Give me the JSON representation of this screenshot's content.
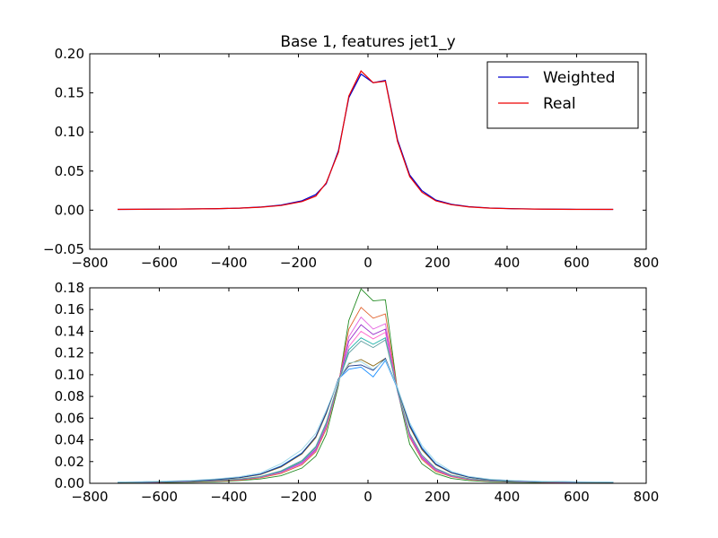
{
  "chart_data": [
    {
      "type": "line",
      "title": "Base 1, features jet1_y",
      "xlabel": "",
      "ylabel": "",
      "xlim": [
        -800,
        800
      ],
      "ylim": [
        -0.05,
        0.2
      ],
      "xticks": [
        -800,
        -600,
        -400,
        -200,
        0,
        200,
        400,
        600,
        800
      ],
      "xtick_labels": [
        "−800",
        "−600",
        "−400",
        "−200",
        "0",
        "200",
        "400",
        "600",
        "800"
      ],
      "yticks": [
        -0.05,
        0.0,
        0.05,
        0.1,
        0.15,
        0.2
      ],
      "ytick_labels": [
        "−0.05",
        "0.00",
        "0.05",
        "0.10",
        "0.15",
        "0.20"
      ],
      "grid": false,
      "legend": "top-right",
      "x": [
        -720,
        -650,
        -580,
        -510,
        -440,
        -370,
        -310,
        -250,
        -190,
        -150,
        -120,
        -85,
        -55,
        -20,
        15,
        50,
        85,
        120,
        155,
        195,
        240,
        290,
        350,
        420,
        500,
        600,
        705
      ],
      "series": [
        {
          "name": "Weighted",
          "color": "#0000cc",
          "values": [
            0.001,
            0.0012,
            0.0014,
            0.0016,
            0.0019,
            0.0026,
            0.004,
            0.0065,
            0.012,
            0.02,
            0.034,
            0.076,
            0.144,
            0.174,
            0.163,
            0.166,
            0.09,
            0.045,
            0.025,
            0.013,
            0.0075,
            0.0045,
            0.0028,
            0.0019,
            0.0014,
            0.0011,
            0.001
          ]
        },
        {
          "name": "Real",
          "color": "#ee0000",
          "values": [
            0.001,
            0.0012,
            0.0014,
            0.0016,
            0.0019,
            0.0026,
            0.0038,
            0.006,
            0.011,
            0.018,
            0.035,
            0.074,
            0.146,
            0.178,
            0.163,
            0.165,
            0.088,
            0.043,
            0.023,
            0.012,
            0.007,
            0.0042,
            0.0026,
            0.0018,
            0.0013,
            0.001,
            0.001
          ]
        }
      ]
    },
    {
      "type": "line",
      "title": "",
      "xlabel": "",
      "ylabel": "",
      "xlim": [
        -800,
        800
      ],
      "ylim": [
        0.0,
        0.18
      ],
      "xticks": [
        -800,
        -600,
        -400,
        -200,
        0,
        200,
        400,
        600,
        800
      ],
      "xtick_labels": [
        "−800",
        "−600",
        "−400",
        "−200",
        "0",
        "200",
        "400",
        "600",
        "800"
      ],
      "yticks": [
        0.0,
        0.02,
        0.04,
        0.06,
        0.08,
        0.1,
        0.12,
        0.14,
        0.16,
        0.18
      ],
      "ytick_labels": [
        "0.00",
        "0.02",
        "0.04",
        "0.06",
        "0.08",
        "0.10",
        "0.12",
        "0.14",
        "0.16",
        "0.18"
      ],
      "grid": false,
      "legend": "none",
      "x": [
        -720,
        -650,
        -580,
        -510,
        -440,
        -370,
        -310,
        -250,
        -190,
        -150,
        -120,
        -85,
        -55,
        -20,
        15,
        50,
        85,
        120,
        155,
        195,
        240,
        290,
        350,
        420,
        500,
        600,
        705
      ],
      "series": [
        {
          "color": "#228b22",
          "values": [
            0.0005,
            0.0006,
            0.0008,
            0.001,
            0.0015,
            0.0025,
            0.004,
            0.007,
            0.014,
            0.025,
            0.045,
            0.09,
            0.15,
            0.179,
            0.168,
            0.169,
            0.085,
            0.036,
            0.018,
            0.009,
            0.0045,
            0.0025,
            0.0015,
            0.001,
            0.0008,
            0.0006,
            0.0005
          ]
        },
        {
          "color": "#e0602a",
          "values": [
            0.0006,
            0.0008,
            0.001,
            0.0013,
            0.002,
            0.003,
            0.005,
            0.009,
            0.017,
            0.029,
            0.05,
            0.092,
            0.142,
            0.162,
            0.152,
            0.156,
            0.085,
            0.042,
            0.022,
            0.011,
            0.006,
            0.0035,
            0.002,
            0.0014,
            0.001,
            0.0008,
            0.0006
          ]
        },
        {
          "color": "#e35ce0",
          "values": [
            0.0007,
            0.0009,
            0.0012,
            0.0015,
            0.0023,
            0.0035,
            0.0055,
            0.01,
            0.018,
            0.03,
            0.052,
            0.092,
            0.135,
            0.153,
            0.142,
            0.147,
            0.084,
            0.043,
            0.023,
            0.012,
            0.0065,
            0.0038,
            0.0022,
            0.0015,
            0.0011,
            0.0009,
            0.0007
          ]
        },
        {
          "color": "#9932cc",
          "values": [
            0.0007,
            0.0009,
            0.0012,
            0.0016,
            0.0024,
            0.0036,
            0.0057,
            0.0105,
            0.019,
            0.031,
            0.053,
            0.093,
            0.131,
            0.146,
            0.137,
            0.142,
            0.085,
            0.044,
            0.024,
            0.0125,
            0.0068,
            0.004,
            0.0023,
            0.0016,
            0.0012,
            0.0009,
            0.0007
          ]
        },
        {
          "color": "#ff66cc",
          "values": [
            0.0007,
            0.0009,
            0.0012,
            0.0016,
            0.0025,
            0.0037,
            0.0058,
            0.0108,
            0.0195,
            0.032,
            0.054,
            0.093,
            0.126,
            0.14,
            0.133,
            0.139,
            0.085,
            0.045,
            0.025,
            0.013,
            0.007,
            0.0041,
            0.0024,
            0.0016,
            0.0012,
            0.0009,
            0.0007
          ]
        },
        {
          "color": "#20b2aa",
          "values": [
            0.0008,
            0.001,
            0.0013,
            0.0017,
            0.0026,
            0.0039,
            0.006,
            0.011,
            0.02,
            0.033,
            0.055,
            0.093,
            0.123,
            0.134,
            0.128,
            0.134,
            0.085,
            0.046,
            0.026,
            0.0135,
            0.0073,
            0.0043,
            0.0025,
            0.0017,
            0.0013,
            0.001,
            0.0008
          ]
        },
        {
          "color": "#5f9ea0",
          "values": [
            0.0008,
            0.001,
            0.0013,
            0.0017,
            0.0027,
            0.004,
            0.0062,
            0.0115,
            0.021,
            0.034,
            0.056,
            0.093,
            0.12,
            0.131,
            0.125,
            0.132,
            0.085,
            0.046,
            0.026,
            0.0138,
            0.0075,
            0.0044,
            0.0026,
            0.0018,
            0.0013,
            0.001,
            0.0008
          ]
        },
        {
          "color": "#8b6914",
          "values": [
            0.001,
            0.0012,
            0.0016,
            0.0021,
            0.0033,
            0.005,
            0.008,
            0.015,
            0.027,
            0.042,
            0.064,
            0.096,
            0.11,
            0.114,
            0.108,
            0.115,
            0.087,
            0.052,
            0.031,
            0.017,
            0.0095,
            0.0055,
            0.0033,
            0.0022,
            0.0016,
            0.0012,
            0.001
          ]
        },
        {
          "color": "#1e90ff",
          "values": [
            0.0011,
            0.0013,
            0.0017,
            0.0022,
            0.0035,
            0.0053,
            0.0085,
            0.016,
            0.028,
            0.043,
            0.065,
            0.096,
            0.105,
            0.107,
            0.098,
            0.113,
            0.087,
            0.054,
            0.033,
            0.018,
            0.01,
            0.0058,
            0.0035,
            0.0023,
            0.0017,
            0.0013,
            0.0011
          ]
        },
        {
          "color": "#1e3a8a",
          "values": [
            0.0011,
            0.0013,
            0.0017,
            0.0022,
            0.0034,
            0.0052,
            0.0083,
            0.0155,
            0.0275,
            0.043,
            0.065,
            0.096,
            0.108,
            0.109,
            0.104,
            0.115,
            0.088,
            0.053,
            0.032,
            0.0175,
            0.0098,
            0.0056,
            0.0034,
            0.0022,
            0.0016,
            0.0012,
            0.0011
          ]
        },
        {
          "color": "#9ad6e6",
          "values": [
            0.0012,
            0.0015,
            0.002,
            0.0026,
            0.004,
            0.006,
            0.0095,
            0.018,
            0.031,
            0.046,
            0.067,
            0.095,
            0.111,
            0.112,
            0.105,
            0.114,
            0.088,
            0.056,
            0.035,
            0.02,
            0.011,
            0.0063,
            0.0038,
            0.0025,
            0.0018,
            0.0014,
            0.0012
          ]
        }
      ]
    }
  ]
}
